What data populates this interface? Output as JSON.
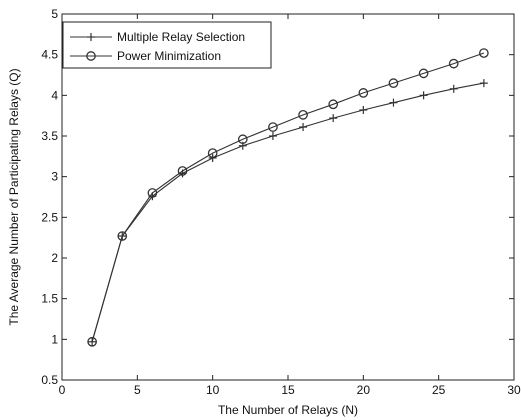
{
  "chart_data": {
    "type": "line",
    "title": "",
    "xlabel": "The Number of Relays (N)",
    "ylabel": "The Average Number of Participating Relays (Q)",
    "xlim": [
      0,
      30
    ],
    "ylim": [
      0.5,
      5
    ],
    "xticks": [
      0,
      5,
      10,
      15,
      20,
      25,
      30
    ],
    "yticks": [
      0.5,
      1,
      1.5,
      2,
      2.5,
      3,
      3.5,
      4,
      4.5,
      5
    ],
    "xtick_labels": [
      "0",
      "5",
      "10",
      "15",
      "20",
      "25",
      "30"
    ],
    "ytick_labels": [
      "0.5",
      "1",
      "1.5",
      "2",
      "2.5",
      "3",
      "3.5",
      "4",
      "4.5",
      "5"
    ],
    "grid": false,
    "legend_position": "top-left",
    "x": [
      2,
      4,
      6,
      8,
      10,
      12,
      14,
      16,
      18,
      20,
      22,
      24,
      26,
      28
    ],
    "series": [
      {
        "name": "Multiple Relay Selection",
        "marker": "plus",
        "color": "#333333",
        "values": [
          0.97,
          2.27,
          2.76,
          3.04,
          3.23,
          3.38,
          3.5,
          3.61,
          3.72,
          3.82,
          3.91,
          4.0,
          4.08,
          4.15
        ]
      },
      {
        "name": "Power Minimization",
        "marker": "circle",
        "color": "#333333",
        "values": [
          0.97,
          2.27,
          2.8,
          3.07,
          3.29,
          3.46,
          3.61,
          3.76,
          3.89,
          4.03,
          4.15,
          4.27,
          4.39,
          4.52
        ]
      }
    ]
  }
}
